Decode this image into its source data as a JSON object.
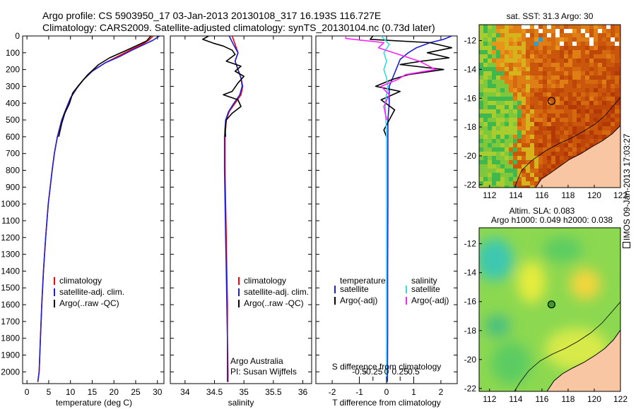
{
  "title_line1": "Argo profile: CS 5903950_17 03-Jan-2013 20130108_317 16.193S 116.727E",
  "title_line2": "Climatology: CARS2009. Satellite-adjusted climatology: synTS_20130104.nc (0.73d later)",
  "credit": "IMOS 09-Jan-2013 17:03:27",
  "colors": {
    "red": "#ff0000",
    "blue": "#1f1fd6",
    "black": "#000000",
    "cyan": "#33dddd",
    "magenta": "#ff22ff"
  },
  "chart_data": [
    {
      "type": "line",
      "xlabel": "temperature (deg C)",
      "xlim": [
        -1,
        31.5
      ],
      "ylim": [
        2070,
        0
      ],
      "xticks": [
        "0",
        "5",
        "10",
        "15",
        "20",
        "25",
        "30"
      ],
      "xtick_values": [
        0,
        5,
        10,
        15,
        20,
        25,
        30
      ],
      "yticks": [
        "0",
        "100",
        "200",
        "300",
        "400",
        "500",
        "600",
        "700",
        "800",
        "900",
        "1000",
        "1100",
        "1200",
        "1300",
        "1400",
        "1500",
        "1600",
        "1700",
        "1800",
        "1900",
        "2000"
      ],
      "ytick_values": [
        0,
        100,
        200,
        300,
        400,
        500,
        600,
        700,
        800,
        900,
        1000,
        1100,
        1200,
        1300,
        1400,
        1500,
        1600,
        1700,
        1800,
        1900,
        2000
      ],
      "legend": [
        "climatology",
        "satellite-adj. clim.",
        "Argo(..raw -QC)"
      ],
      "series": [
        {
          "name": "climatology",
          "color": "red",
          "x": [
            29.0,
            28.0,
            26.5,
            24.0,
            21.0,
            18.0,
            15.0,
            13.0,
            11.5,
            10.0,
            8.9,
            8.0,
            7.0,
            6.3,
            5.8,
            4.9,
            4.3,
            3.8,
            3.4,
            3.1,
            2.8,
            2.5
          ],
          "y": [
            0,
            25,
            50,
            80,
            120,
            160,
            210,
            260,
            310,
            370,
            440,
            500,
            600,
            700,
            800,
            1000,
            1200,
            1400,
            1600,
            1800,
            2000,
            2060
          ]
        },
        {
          "name": "satellite-adj. clim.",
          "color": "blue",
          "x": [
            30.5,
            29.0,
            27.0,
            24.5,
            21.5,
            18.0,
            15.0,
            13.0,
            11.5,
            10.0,
            8.9,
            8.0,
            7.0,
            6.3,
            5.8,
            4.9,
            4.3,
            3.8,
            3.4,
            3.1,
            2.8,
            2.5
          ],
          "y": [
            0,
            25,
            50,
            80,
            120,
            160,
            210,
            260,
            310,
            370,
            440,
            500,
            600,
            700,
            800,
            1000,
            1200,
            1400,
            1600,
            1800,
            2000,
            2060
          ]
        },
        {
          "name": "Argo(..raw -QC)",
          "color": "black",
          "x": [
            28.5,
            27.5,
            25.0,
            22.5,
            19.0,
            16.5,
            14.0,
            12.0,
            10.5,
            9.8,
            8.7,
            8.0,
            7.3
          ],
          "y": [
            0,
            30,
            60,
            90,
            130,
            170,
            230,
            290,
            340,
            400,
            460,
            520,
            600
          ]
        }
      ]
    },
    {
      "type": "line",
      "xlabel": "salinity",
      "xlim": [
        33.75,
        36.15
      ],
      "ylim": [
        2070,
        0
      ],
      "xticks": [
        "34",
        "34.5",
        "35",
        "35.5",
        "36"
      ],
      "xtick_values": [
        34,
        34.5,
        35,
        35.5,
        36
      ],
      "legend": [
        "climatology",
        "satellite-adj. clim.",
        "Argo(..raw -QC)"
      ],
      "annotations": [
        "Argo Australia",
        "PI: Susan Wijffels"
      ],
      "series": [
        {
          "name": "climatology",
          "color": "red",
          "x": [
            34.8,
            34.85,
            34.9,
            34.85,
            34.9,
            34.95,
            34.98,
            34.95,
            34.85,
            34.75,
            34.7,
            34.68,
            34.68,
            34.69,
            34.7,
            34.71,
            34.72,
            34.72,
            34.73,
            34.73
          ],
          "y": [
            0,
            50,
            100,
            150,
            200,
            250,
            300,
            350,
            400,
            450,
            500,
            600,
            800,
            1000,
            1200,
            1400,
            1600,
            1800,
            2000,
            2060
          ]
        },
        {
          "name": "satellite-adj. clim.",
          "color": "blue",
          "x": [
            34.75,
            34.82,
            34.9,
            34.85,
            34.9,
            34.95,
            34.97,
            34.93,
            34.83,
            34.74,
            34.69,
            34.67,
            34.67,
            34.68,
            34.69,
            34.7,
            34.71,
            34.72,
            34.72,
            34.72
          ],
          "y": [
            0,
            50,
            100,
            150,
            200,
            250,
            300,
            350,
            400,
            450,
            500,
            600,
            800,
            1000,
            1200,
            1400,
            1600,
            1800,
            2000,
            2060
          ]
        },
        {
          "name": "Argo(..raw -QC)",
          "color": "black",
          "x": [
            34.4,
            34.3,
            34.5,
            34.65,
            34.8,
            34.85,
            34.7,
            34.95,
            34.85,
            35.0,
            34.9,
            34.8,
            34.65,
            34.9,
            34.95,
            34.8,
            34.7,
            34.68,
            34.69
          ],
          "y": [
            0,
            20,
            45,
            60,
            85,
            110,
            150,
            180,
            210,
            240,
            280,
            330,
            350,
            380,
            420,
            460,
            500,
            560,
            600
          ]
        }
      ]
    },
    {
      "type": "line",
      "xlabel": "T difference from climatology",
      "xlabel_top": "S difference from climatology",
      "xlim": [
        -2.6,
        2.6
      ],
      "ylim": [
        2070,
        0
      ],
      "xticks": [
        "-2",
        "-1",
        "0",
        "1",
        "2"
      ],
      "xtick_values": [
        -2,
        -1,
        0,
        1,
        2
      ],
      "xticks_top": [
        "-0.5",
        "-0.25",
        "0",
        "0.25",
        "0.5"
      ],
      "xtick_top_values": [
        -1.0,
        -0.5,
        0,
        0.5,
        1.0
      ],
      "legend_headers": [
        "temperature",
        "salinity"
      ],
      "legend": [
        "satellite",
        "Argo(-adj)",
        "satellite",
        "Argo(-adj)"
      ],
      "series": [
        {
          "name": "T satellite",
          "color": "blue",
          "x": [
            2.4,
            2.1,
            1.6,
            1.1,
            0.8,
            0.5,
            0.4,
            0.3,
            0.2,
            0.1,
            0.1,
            0.1,
            0.05,
            0.05,
            0.05,
            0.04,
            0.04,
            0.03
          ],
          "y": [
            0,
            20,
            40,
            70,
            100,
            140,
            180,
            220,
            260,
            300,
            350,
            400,
            500,
            700,
            1000,
            1400,
            1800,
            2060
          ]
        },
        {
          "name": "T Argo(-adj)",
          "color": "black",
          "x": [
            -0.5,
            -0.6,
            1.6,
            2.4,
            1.5,
            2.3,
            1.3,
            0.5,
            2.1,
            0.8,
            0.2,
            -0.4,
            0.5,
            -0.2,
            0.3,
            0.1,
            -0.1,
            0.0
          ],
          "y": [
            0,
            20,
            40,
            70,
            100,
            130,
            150,
            170,
            200,
            230,
            260,
            300,
            330,
            380,
            440,
            500,
            560,
            600
          ]
        },
        {
          "name": "S satellite",
          "color": "cyan",
          "x": [
            -0.2,
            0.1,
            -0.1,
            0.0,
            -0.1,
            0.0,
            0.05,
            -0.05,
            0.0,
            0.0,
            0.0,
            0.0,
            0.0
          ],
          "y": [
            0,
            50,
            100,
            150,
            200,
            250,
            300,
            400,
            600,
            900,
            1300,
            1700,
            2060
          ]
        },
        {
          "name": "S Argo(-adj)",
          "color": "magenta",
          "x": [
            -1.5,
            -1.5,
            -0.1,
            -0.3,
            1.2,
            1.8,
            0.7,
            0.4,
            -0.2,
            0.1,
            -0.1,
            0.0
          ],
          "y": [
            0,
            15,
            40,
            70,
            150,
            200,
            230,
            260,
            300,
            350,
            420,
            500
          ]
        }
      ]
    },
    {
      "type": "heatmap",
      "title": "sat. SST: 31.3 Argo: 30",
      "xlim": [
        111.2,
        122
      ],
      "ylim": [
        -22.2,
        -10.9
      ],
      "xticks": [
        "112",
        "114",
        "116",
        "118",
        "120",
        "122"
      ],
      "xtick_values": [
        112,
        114,
        116,
        118,
        120,
        122
      ],
      "yticks": [
        "-12",
        "-14",
        "-16",
        "-18",
        "-20",
        "-22"
      ],
      "ytick_values": [
        -12,
        -14,
        -16,
        -18,
        -20,
        -22
      ],
      "marker": {
        "lon": 116.727,
        "lat": -16.193
      }
    },
    {
      "type": "heatmap",
      "title": "Altim. SLA: 0.083",
      "subtitle": "Argo h1000: 0.049 h2000: 0.038",
      "xlim": [
        111.2,
        122
      ],
      "ylim": [
        -22.2,
        -10.9
      ],
      "xticks": [
        "112",
        "114",
        "116",
        "118",
        "120",
        "122"
      ],
      "xtick_values": [
        112,
        114,
        116,
        118,
        120,
        122
      ],
      "yticks": [
        "-12",
        "-14",
        "-16",
        "-18",
        "-20",
        "-22"
      ],
      "ytick_values": [
        -12,
        -14,
        -16,
        -18,
        -20,
        -22
      ],
      "marker": {
        "lon": 116.727,
        "lat": -16.193
      }
    }
  ]
}
